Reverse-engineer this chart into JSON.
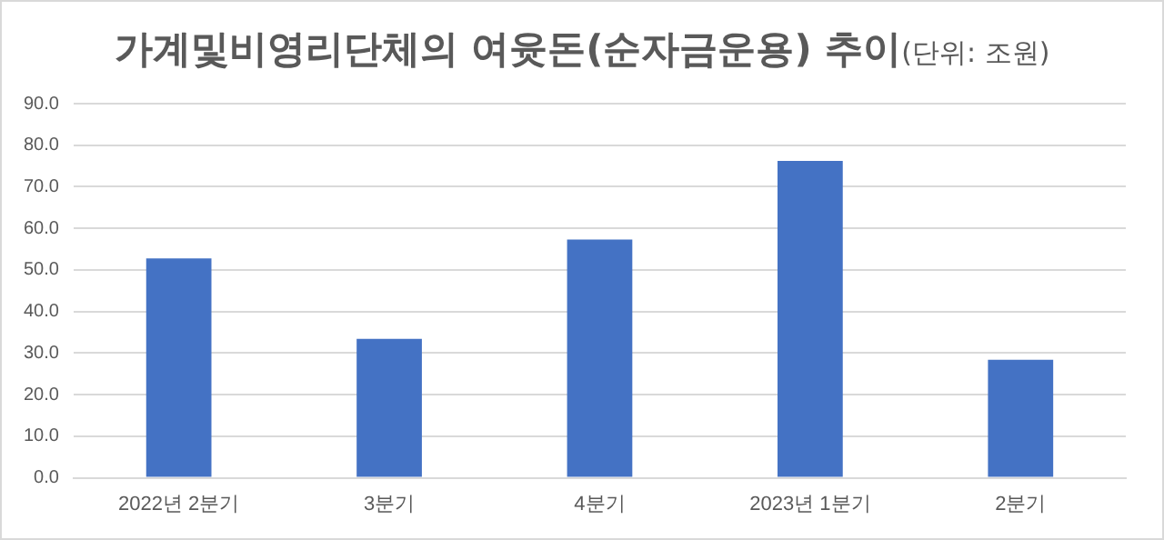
{
  "chart_data": {
    "type": "bar",
    "title": "가계및비영리단체의 여윳돈(순자금운용) 추이",
    "subtitle": "(단위: 조원)",
    "categories": [
      "2022년 2분기",
      "3분기",
      "4분기",
      "2023년 1분기",
      "2분기"
    ],
    "values": [
      52.8,
      33.4,
      57.3,
      76.2,
      28.4
    ],
    "color": "#4472c4",
    "ylim": [
      0,
      90
    ],
    "yticks": [
      {
        "value": 0,
        "label": "0.0"
      },
      {
        "value": 10,
        "label": "10.0"
      },
      {
        "value": 20,
        "label": "20.0"
      },
      {
        "value": 30,
        "label": "30.0"
      },
      {
        "value": 40,
        "label": "40.0"
      },
      {
        "value": 50,
        "label": "50.0"
      },
      {
        "value": 60,
        "label": "60.0"
      },
      {
        "value": 70,
        "label": "70.0"
      },
      {
        "value": 80,
        "label": "80.0"
      },
      {
        "value": 90,
        "label": "90.0"
      }
    ],
    "grid": "y",
    "legend": false
  }
}
